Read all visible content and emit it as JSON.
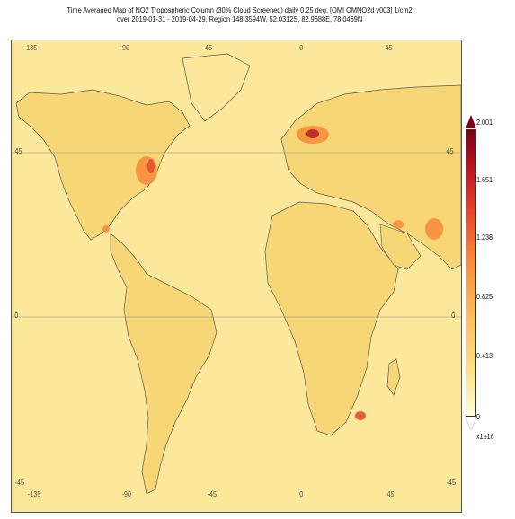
{
  "title": {
    "line1": "Time Averaged Map of NO2 Tropospheric Column (30% Cloud Screened) daily 0.25 deg. [OMI OMNO2d v003] 1/cm2",
    "line2": "over 2019-01-31 - 2019-04-29, Region 148.3594W, 52.0312S, 82.9688E, 78.0469N"
  },
  "axes": {
    "top_lon": [
      "-135",
      "-90",
      "-45",
      "0",
      "45"
    ],
    "bottom_lon": [
      "-135",
      "-90",
      "-45",
      "0",
      "45"
    ],
    "left_lat": [
      "45",
      "0",
      "-45"
    ],
    "right_lat": [
      "45",
      "0",
      "-45"
    ]
  },
  "colorbar": {
    "labels": [
      "2.001",
      "1.651",
      "1.238",
      "0.825",
      "0.413",
      "0"
    ],
    "unit": "x1e16",
    "colors": [
      "#ffffe0",
      "#fde28a",
      "#fcbd5e",
      "#f98a3a",
      "#e3432b",
      "#b51222",
      "#7a0016"
    ]
  },
  "map": {
    "background_color": "#fbe89a",
    "land_color": "#f7cf68",
    "hotspot_colors": [
      "#e3432b",
      "#f98a3a",
      "#b51222"
    ]
  }
}
